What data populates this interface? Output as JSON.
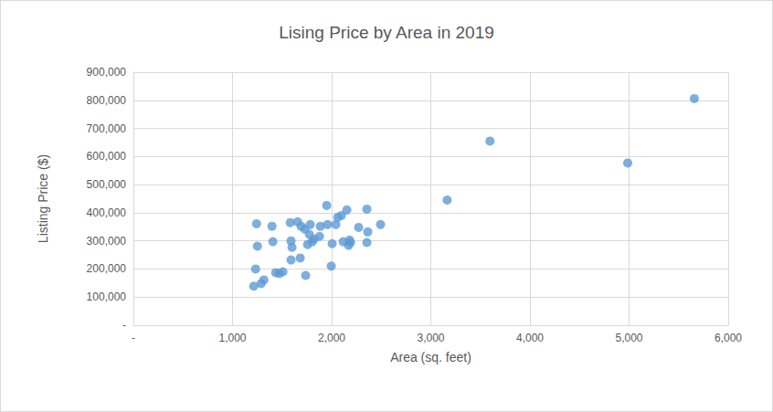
{
  "chart_data": {
    "type": "scatter",
    "title": "Lising Price by Area in 2019",
    "x_label": "Area (sq. feet)",
    "y_label": "Listing Price ($)",
    "color": "#5b9bd5",
    "marker": "circle",
    "grid": true,
    "x": [
      1214,
      1233,
      1242,
      1251,
      1288,
      1316,
      1398,
      1407,
      1435,
      1472,
      1508,
      1582,
      1590,
      1600,
      1590,
      1656,
      1683,
      1692,
      1729,
      1738,
      1757,
      1775,
      1784,
      1803,
      1822,
      1877,
      1886,
      1950,
      1959,
      1996,
      2005,
      2042,
      2061,
      2098,
      2116,
      2153,
      2171,
      2180,
      2190,
      2272,
      2355,
      2355,
      2364,
      2493,
      3165,
      3597,
      4986,
      5658
    ],
    "values": [
      139000,
      200000,
      361000,
      281000,
      148000,
      161000,
      352000,
      297000,
      187000,
      184000,
      190000,
      365000,
      300000,
      277000,
      232000,
      368000,
      239000,
      352000,
      342000,
      177000,
      287000,
      323000,
      358000,
      297000,
      306000,
      316000,
      352000,
      426000,
      358000,
      210000,
      290000,
      358000,
      384000,
      390000,
      297000,
      410000,
      284000,
      303000,
      294000,
      348000,
      413000,
      294000,
      332000,
      358000,
      445000,
      655000,
      577000,
      806000
    ],
    "xlim": [
      0,
      6000
    ],
    "xticks": [
      {
        "value": 0,
        "label": "-"
      },
      {
        "value": 1000,
        "label": "1,000"
      },
      {
        "value": 2000,
        "label": "2,000"
      },
      {
        "value": 3000,
        "label": "3,000"
      },
      {
        "value": 4000,
        "label": "4,000"
      },
      {
        "value": 5000,
        "label": "5,000"
      },
      {
        "value": 6000,
        "label": "6,000"
      }
    ],
    "ylim": [
      0,
      900000
    ],
    "yticks": [
      {
        "value": 0,
        "label": "-"
      },
      {
        "value": 100000,
        "label": "100,000"
      },
      {
        "value": 200000,
        "label": "200,000"
      },
      {
        "value": 300000,
        "label": "300,000"
      },
      {
        "value": 400000,
        "label": "400,000"
      },
      {
        "value": 500000,
        "label": "500,000"
      },
      {
        "value": 600000,
        "label": "600,000"
      },
      {
        "value": 700000,
        "label": "700,000"
      },
      {
        "value": 800000,
        "label": "800,000"
      },
      {
        "value": 900000,
        "label": "900,000"
      }
    ]
  }
}
